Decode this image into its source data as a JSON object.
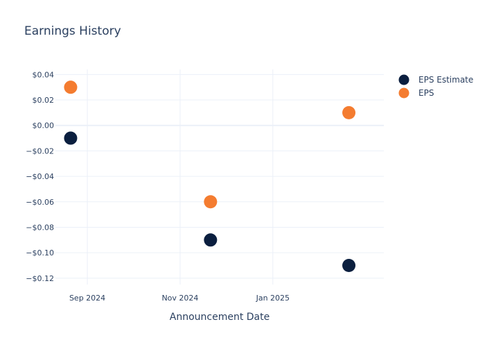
{
  "chart_data": {
    "type": "scatter",
    "title": "Earnings History",
    "xlabel": "Announcement Date",
    "ylabel": "",
    "x_ticks": [
      {
        "date": "2024-09-01",
        "label": "Sep 2024"
      },
      {
        "date": "2024-11-01",
        "label": "Nov 2024"
      },
      {
        "date": "2025-01-01",
        "label": "Jan 2025"
      }
    ],
    "xlim": [
      "2024-08-11",
      "2025-03-15"
    ],
    "ylim": [
      -0.125,
      0.044
    ],
    "y_ticks": [
      {
        "value": 0.04,
        "label": "$0.04"
      },
      {
        "value": 0.02,
        "label": "$0.02"
      },
      {
        "value": 0.0,
        "label": "$0.00"
      },
      {
        "value": -0.02,
        "label": "−$0.02"
      },
      {
        "value": -0.04,
        "label": "−$0.04"
      },
      {
        "value": -0.06,
        "label": "−$0.06"
      },
      {
        "value": -0.08,
        "label": "−$0.08"
      },
      {
        "value": -0.1,
        "label": "−$0.10"
      },
      {
        "value": -0.12,
        "label": "−$0.12"
      }
    ],
    "grid": true,
    "legend": "top-right",
    "series": [
      {
        "name": "EPS Estimate",
        "color": "#0b1f3f",
        "points": [
          {
            "x": "2024-08-21",
            "y": -0.01
          },
          {
            "x": "2024-11-21",
            "y": -0.09
          },
          {
            "x": "2025-02-20",
            "y": -0.11
          }
        ]
      },
      {
        "name": "EPS",
        "color": "#f47c30",
        "points": [
          {
            "x": "2024-08-21",
            "y": 0.03
          },
          {
            "x": "2024-11-21",
            "y": -0.06
          },
          {
            "x": "2025-02-20",
            "y": 0.01
          }
        ]
      }
    ]
  }
}
